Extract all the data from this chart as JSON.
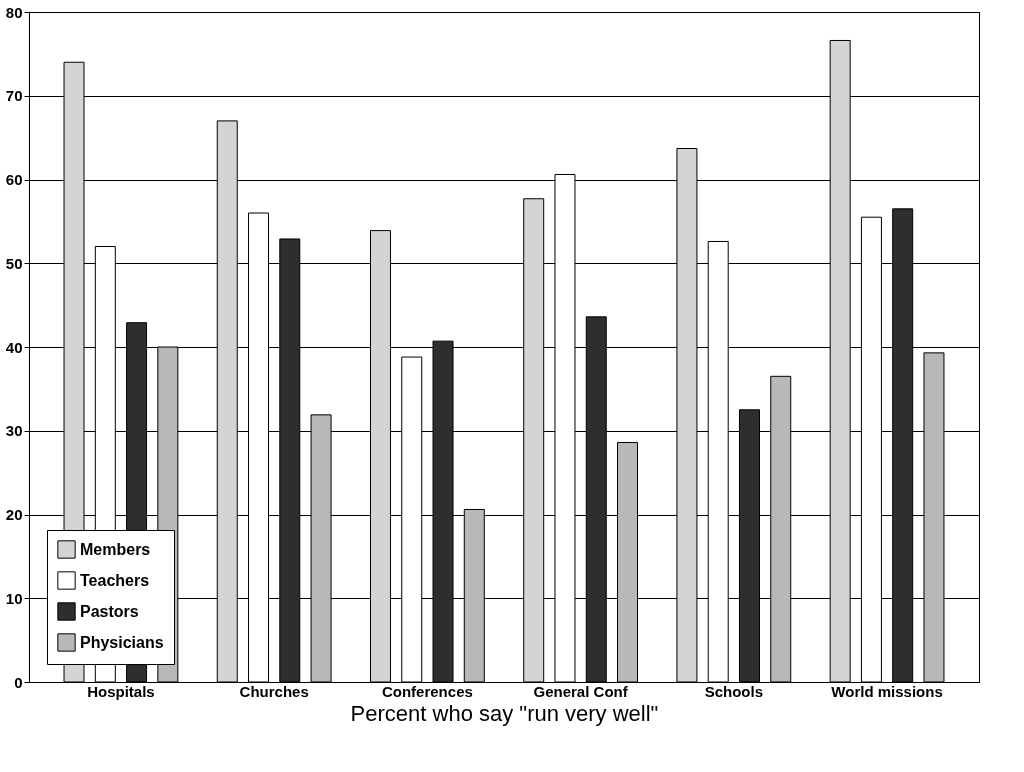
{
  "chart_data": {
    "type": "bar",
    "xlabel": "Percent who say \"run very well\"",
    "categories": [
      "Hospitals",
      "Churches",
      "Conferences",
      "General Conf",
      "Schools",
      "World missions"
    ],
    "series": [
      {
        "name": "Members",
        "color": "#d4d4d4",
        "values": [
          74.0,
          67.0,
          53.9,
          57.7,
          63.7,
          76.6
        ]
      },
      {
        "name": "Teachers",
        "color": "#ffffff",
        "values": [
          52.0,
          56.0,
          38.8,
          60.6,
          52.6,
          55.5
        ]
      },
      {
        "name": "Pastors",
        "color": "#2e2e2e",
        "values": [
          42.9,
          52.9,
          40.7,
          43.6,
          32.5,
          56.5
        ]
      },
      {
        "name": "Physicians",
        "color": "#b8b8b8",
        "values": [
          40.0,
          31.9,
          20.6,
          28.6,
          36.5,
          39.3
        ]
      }
    ],
    "ylim": [
      0,
      80
    ],
    "yticks": [
      0,
      10,
      20,
      30,
      40,
      50,
      60,
      70,
      80
    ],
    "grid": "y",
    "legend": "bottom left"
  }
}
